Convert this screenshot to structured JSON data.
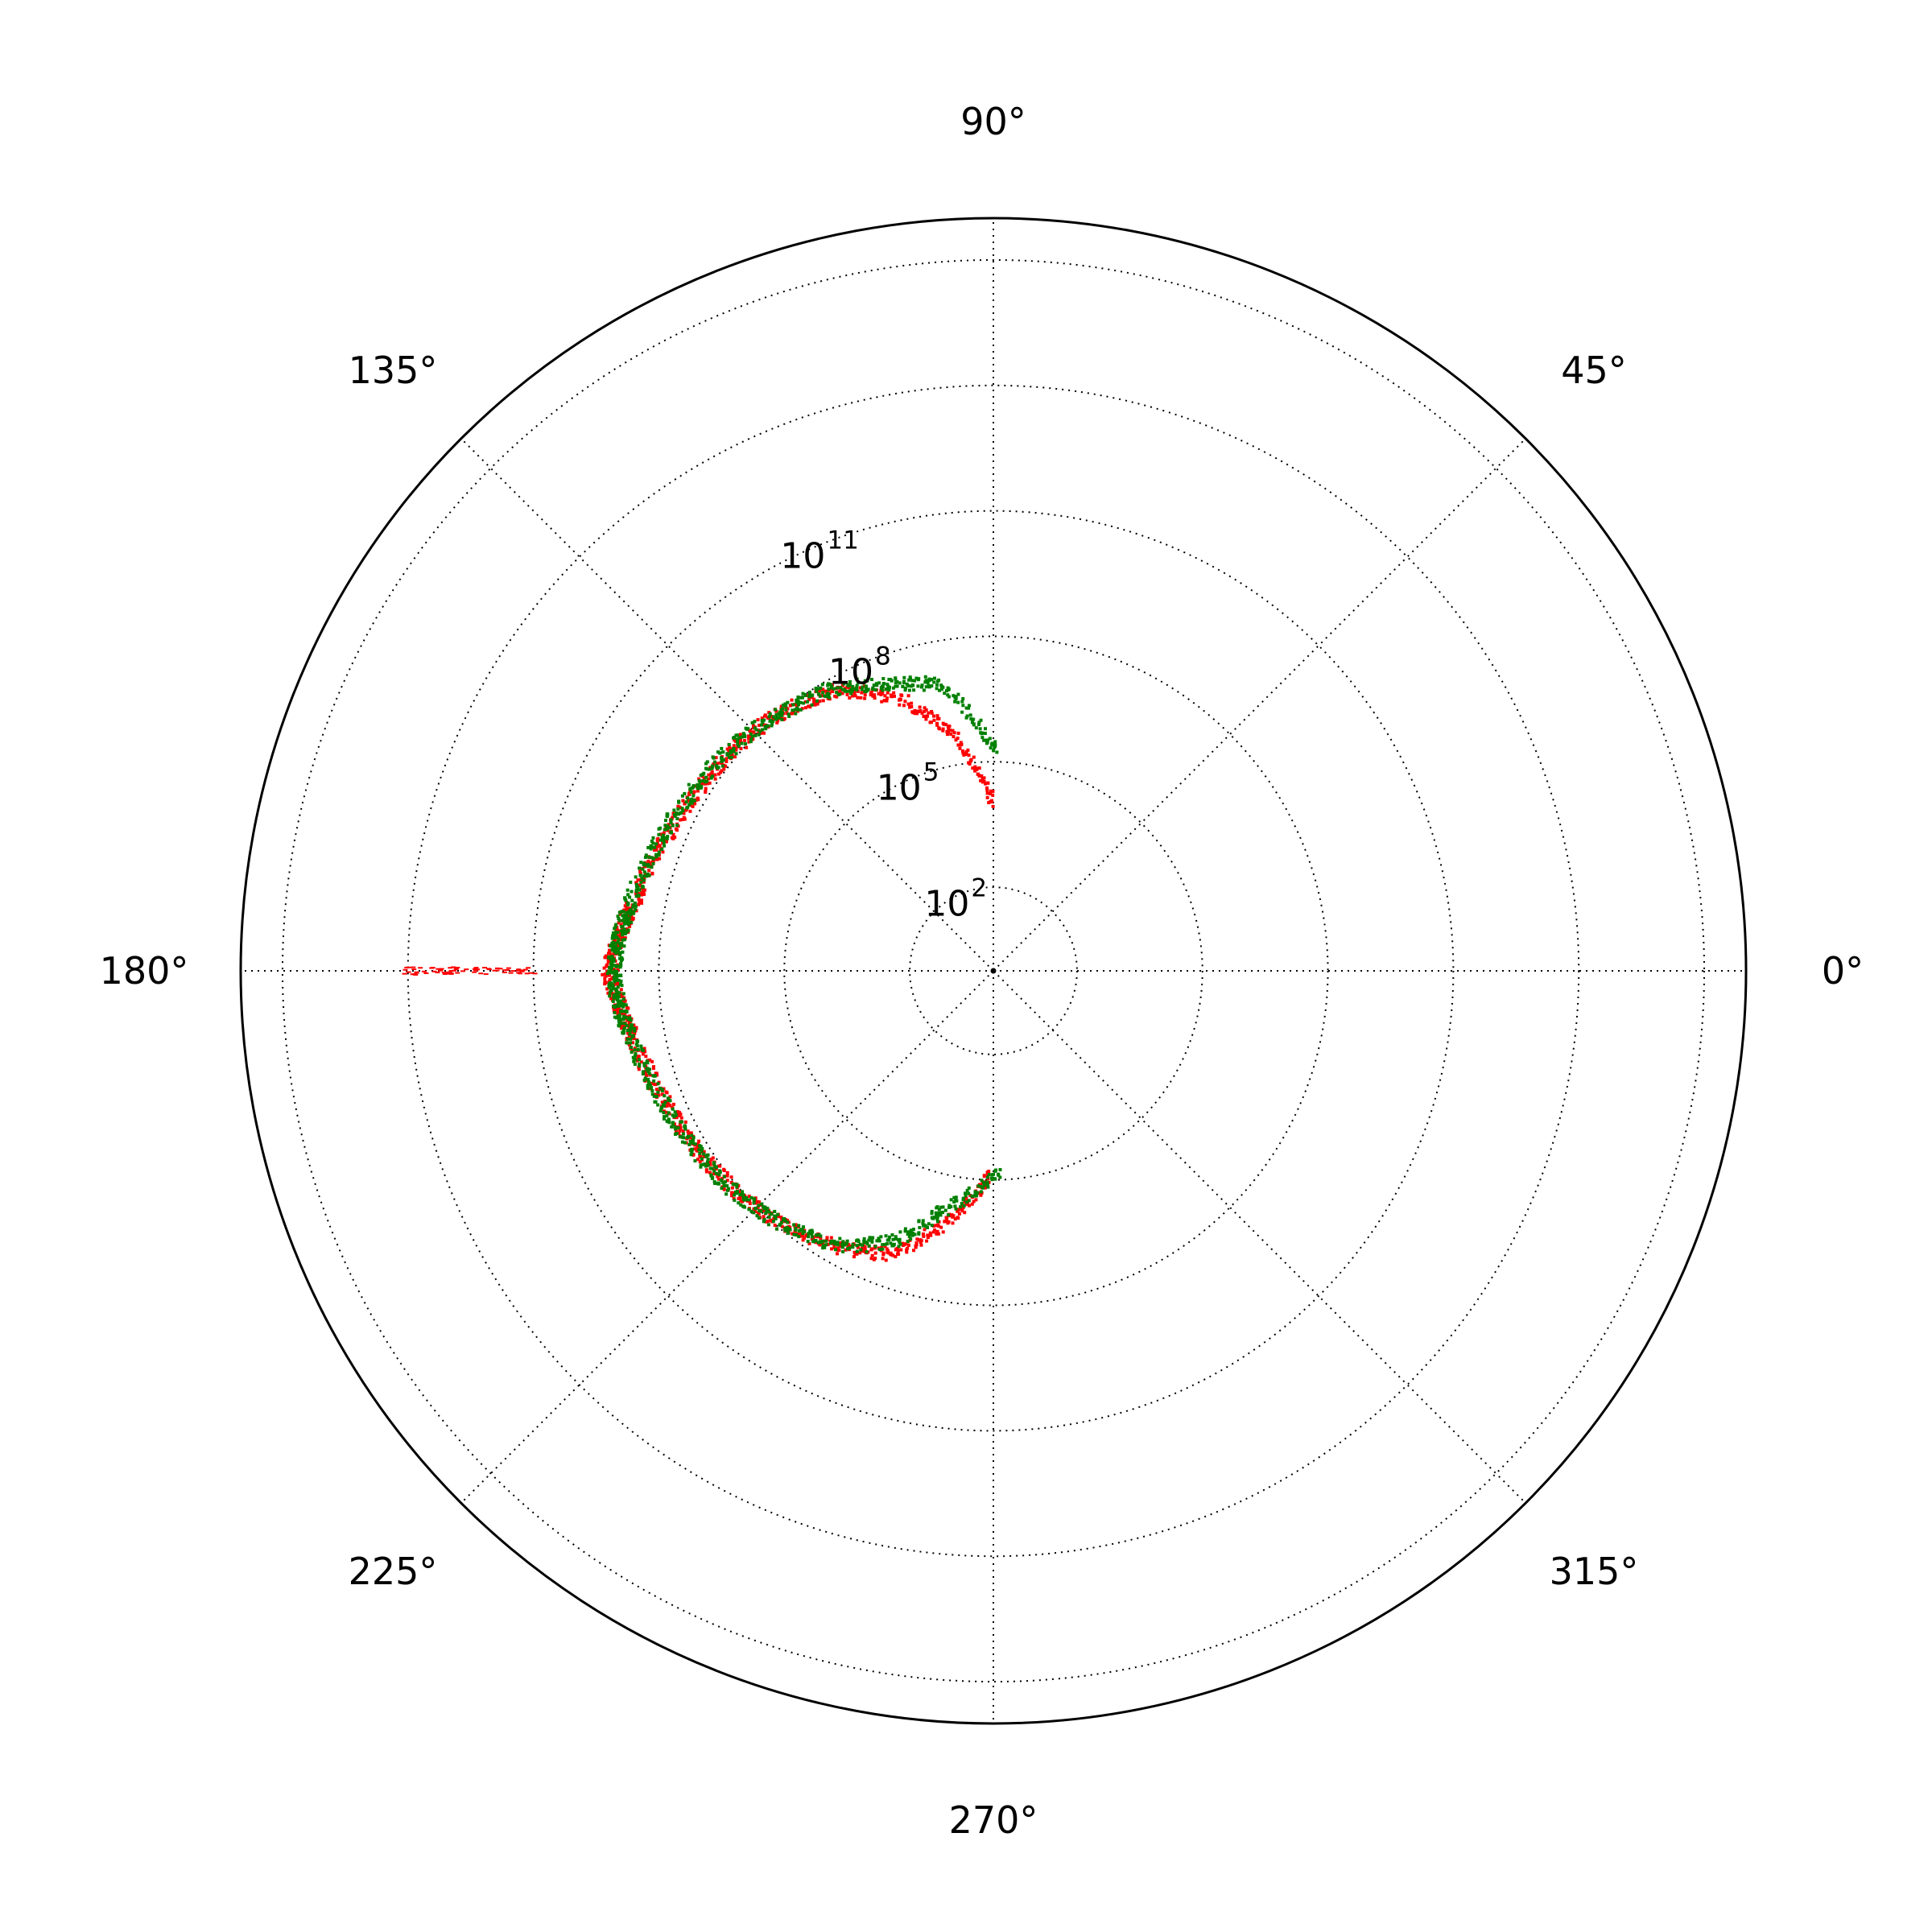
{
  "chart_data": {
    "type": "scatter",
    "projection": "polar",
    "title": "",
    "angle_unit": "degrees",
    "radial_scale": "log",
    "radial_range": [
      1,
      1e+18
    ],
    "grid": true,
    "grid_style": "dotted",
    "angular_ticks": [
      {
        "angle": 0,
        "label": "0°"
      },
      {
        "angle": 45,
        "label": "45°"
      },
      {
        "angle": 90,
        "label": "90°"
      },
      {
        "angle": 135,
        "label": "135°"
      },
      {
        "angle": 180,
        "label": "180°"
      },
      {
        "angle": 225,
        "label": "225°"
      },
      {
        "angle": 270,
        "label": "270°"
      },
      {
        "angle": 315,
        "label": "315°"
      }
    ],
    "radial_ticks": [
      {
        "value": 100.0,
        "base": "10",
        "exp": "2"
      },
      {
        "value": 100000.0,
        "base": "10",
        "exp": "5"
      },
      {
        "value": 100000000.0,
        "base": "10",
        "exp": "8"
      },
      {
        "value": 100000000000.0,
        "base": "10",
        "exp": "11"
      }
    ],
    "radial_gridlines": [
      100.0,
      100000.0,
      100000000.0,
      100000000000.0,
      100000000000000.0,
      1e+17
    ],
    "series": [
      {
        "color": "#ff0000",
        "marker": "dot",
        "points": [
          [
            90,
            10000.0
          ],
          [
            100,
            600000.0
          ],
          [
            110,
            10000000.0
          ],
          [
            120,
            50000000.0
          ],
          [
            130,
            100000000.0
          ],
          [
            140,
            150000000.0
          ],
          [
            150,
            200000000.0
          ],
          [
            160,
            300000000.0
          ],
          [
            170,
            600000000.0
          ],
          [
            175,
            1000000000.0
          ],
          [
            180,
            1500000000.0
          ],
          [
            185,
            1000000000.0
          ],
          [
            190,
            600000000.0
          ],
          [
            200,
            300000000.0
          ],
          [
            210,
            200000000.0
          ],
          [
            220,
            130000000.0
          ],
          [
            230,
            80000000.0
          ],
          [
            240,
            40000000.0
          ],
          [
            250,
            15000000.0
          ],
          [
            260,
            1200000.0
          ],
          [
            269,
            80000.0
          ]
        ],
        "extra_points": [
          [
            180,
            300000000000.0
          ],
          [
            180,
            5000000000000.0
          ],
          [
            180,
            40000000000000.0
          ]
        ]
      },
      {
        "color": "#008000",
        "marker": "dot",
        "points": [
          [
            89,
            150000.0
          ],
          [
            100,
            8000000.0
          ],
          [
            110,
            20000000.0
          ],
          [
            120,
            60000000.0
          ],
          [
            130,
            100000000.0
          ],
          [
            140,
            170000000.0
          ],
          [
            150,
            250000000.0
          ],
          [
            160,
            400000000.0
          ],
          [
            170,
            700000000.0
          ],
          [
            175,
            1000000000.0
          ],
          [
            180,
            1200000000.0
          ],
          [
            185,
            1000000000.0
          ],
          [
            190,
            700000000.0
          ],
          [
            200,
            350000000.0
          ],
          [
            210,
            220000000.0
          ],
          [
            220,
            140000000.0
          ],
          [
            230,
            80000000.0
          ],
          [
            240,
            35000000.0
          ],
          [
            250,
            8000000.0
          ],
          [
            258,
            700000.0
          ],
          [
            272,
            60000.0
          ]
        ],
        "extra_points": []
      }
    ]
  }
}
